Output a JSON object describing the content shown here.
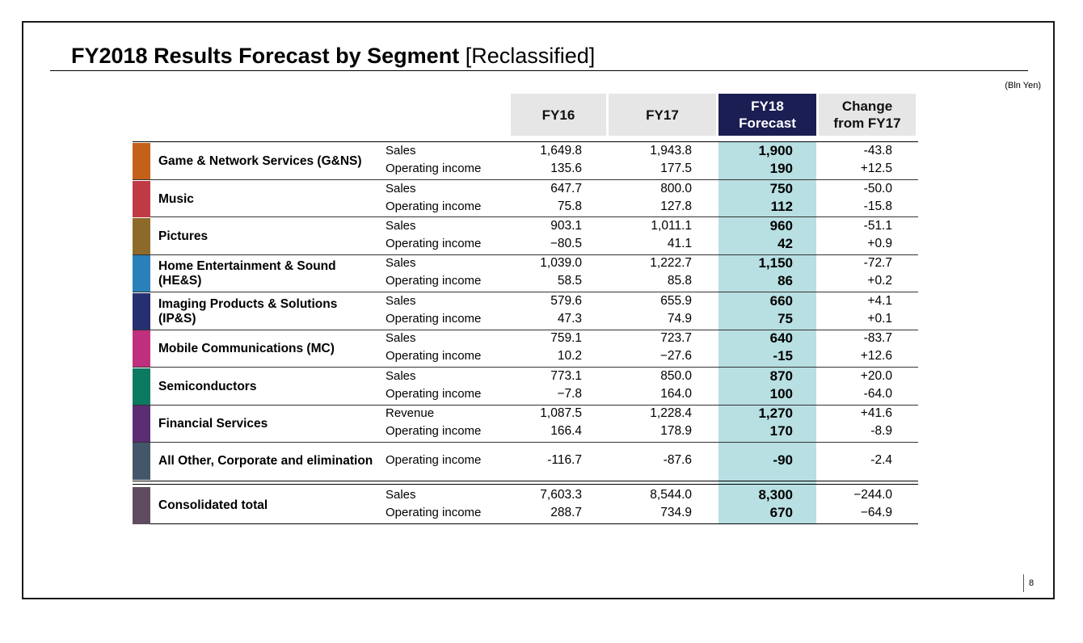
{
  "title": {
    "bold": "FY2018 Results Forecast by Segment",
    "sub": "[Reclassified]"
  },
  "unit": "(Bln Yen)",
  "headers": {
    "fy16": "FY16",
    "fy17": "FY17",
    "fy18_line1": "FY18",
    "fy18_line2": "Forecast",
    "change_line1": "Change",
    "change_line2": "from FY17"
  },
  "colors": {
    "highlight": "#b8dfe2",
    "header_navy": "#1b1e52",
    "header_gray": "#e6e6e6"
  },
  "segments": [
    {
      "name": "Game & Network Services (G&NS)",
      "color": "#c5601a",
      "rows": [
        {
          "metric": "Sales",
          "fy16": "1,649.8",
          "fy17": "1,943.8",
          "fy18": "1,900",
          "change": "-43.8"
        },
        {
          "metric": "Operating income",
          "fy16": "135.6",
          "fy17": "177.5",
          "fy18": "190",
          "change": "+12.5"
        }
      ]
    },
    {
      "name": "Music",
      "color": "#c03a45",
      "rows": [
        {
          "metric": "Sales",
          "fy16": "647.7",
          "fy17": "800.0",
          "fy18": "750",
          "change": "-50.0"
        },
        {
          "metric": "Operating income",
          "fy16": "75.8",
          "fy17": "127.8",
          "fy18": "112",
          "change": "-15.8"
        }
      ]
    },
    {
      "name": "Pictures",
      "color": "#8e6a2a",
      "rows": [
        {
          "metric": "Sales",
          "fy16": "903.1",
          "fy17": "1,011.1",
          "fy18": "960",
          "change": "-51.1"
        },
        {
          "metric": "Operating income",
          "fy16": "−80.5",
          "fy17": "41.1",
          "fy18": "42",
          "change": "+0.9"
        }
      ]
    },
    {
      "name": "Home Entertainment & Sound (HE&S)",
      "color": "#2a80b8",
      "rows": [
        {
          "metric": "Sales",
          "fy16": "1,039.0",
          "fy17": "1,222.7",
          "fy18": "1,150",
          "change": "-72.7"
        },
        {
          "metric": "Operating income",
          "fy16": "58.5",
          "fy17": "85.8",
          "fy18": "86",
          "change": "+0.2"
        }
      ]
    },
    {
      "name": "Imaging Products & Solutions (IP&S)",
      "color": "#263070",
      "rows": [
        {
          "metric": "Sales",
          "fy16": "579.6",
          "fy17": "655.9",
          "fy18": "660",
          "change": "+4.1"
        },
        {
          "metric": "Operating income",
          "fy16": "47.3",
          "fy17": "74.9",
          "fy18": "75",
          "change": "+0.1"
        }
      ]
    },
    {
      "name": "Mobile Communications (MC)",
      "color": "#c02e7e",
      "rows": [
        {
          "metric": "Sales",
          "fy16": "759.1",
          "fy17": "723.7",
          "fy18": "640",
          "change": "-83.7"
        },
        {
          "metric": "Operating income",
          "fy16": "10.2",
          "fy17": "−27.6",
          "fy18": "-15",
          "change": "+12.6"
        }
      ]
    },
    {
      "name": "Semiconductors",
      "color": "#0c7a60",
      "rows": [
        {
          "metric": "Sales",
          "fy16": "773.1",
          "fy17": "850.0",
          "fy18": "870",
          "change": "+20.0"
        },
        {
          "metric": "Operating income",
          "fy16": "−7.8",
          "fy17": "164.0",
          "fy18": "100",
          "change": "-64.0"
        }
      ]
    },
    {
      "name": "Financial Services",
      "color": "#5b2d72",
      "rows": [
        {
          "metric": "Revenue",
          "fy16": "1,087.5",
          "fy17": "1,228.4",
          "fy18": "1,270",
          "change": "+41.6"
        },
        {
          "metric": "Operating income",
          "fy16": "166.4",
          "fy17": "178.9",
          "fy18": "170",
          "change": "-8.9"
        }
      ]
    },
    {
      "name": "All Other, Corporate and elimination",
      "color": "#44576a",
      "rows": [
        {
          "metric": "Operating income",
          "fy16": "-116.7",
          "fy17": "-87.6",
          "fy18": "-90",
          "change": "-2.4"
        }
      ]
    },
    {
      "name": "Consolidated total",
      "color": "#604c60",
      "rows": [
        {
          "metric": "Sales",
          "fy16": "7,603.3",
          "fy17": "8,544.0",
          "fy18": "8,300",
          "change": "−244.0"
        },
        {
          "metric": "Operating income",
          "fy16": "288.7",
          "fy17": "734.9",
          "fy18": "670",
          "change": "−64.9"
        }
      ]
    }
  ],
  "page_number": "8"
}
